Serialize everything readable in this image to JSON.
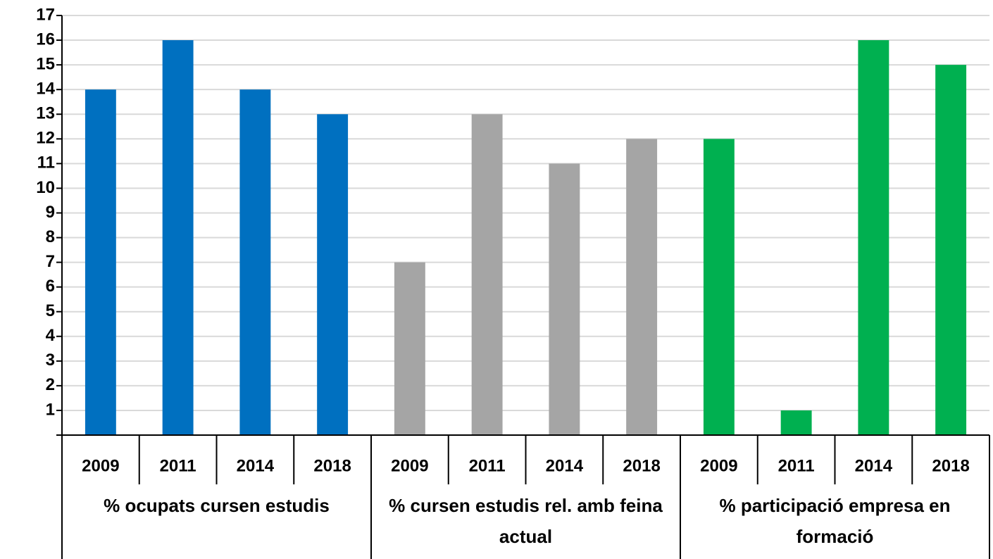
{
  "chart_data": {
    "type": "bar",
    "groups": [
      {
        "name": "% ocupats cursen estudis",
        "color": "#0070c0",
        "categories": [
          "2009",
          "2011",
          "2014",
          "2018"
        ],
        "values": [
          14,
          16,
          14,
          13
        ]
      },
      {
        "name": "% cursen estudis rel. amb feina actual",
        "color": "#a5a5a5",
        "categories": [
          "2009",
          "2011",
          "2014",
          "2018"
        ],
        "values": [
          7,
          13,
          11,
          12
        ]
      },
      {
        "name": "% participació empresa en formació",
        "color": "#00b050",
        "categories": [
          "2009",
          "2011",
          "2014",
          "2018"
        ],
        "values": [
          12,
          1,
          16,
          15
        ]
      }
    ],
    "ylim": [
      0,
      17
    ],
    "yticks": [
      1,
      2,
      3,
      4,
      5,
      6,
      7,
      8,
      9,
      10,
      11,
      12,
      13,
      14,
      15,
      16,
      17
    ],
    "grid": true
  }
}
